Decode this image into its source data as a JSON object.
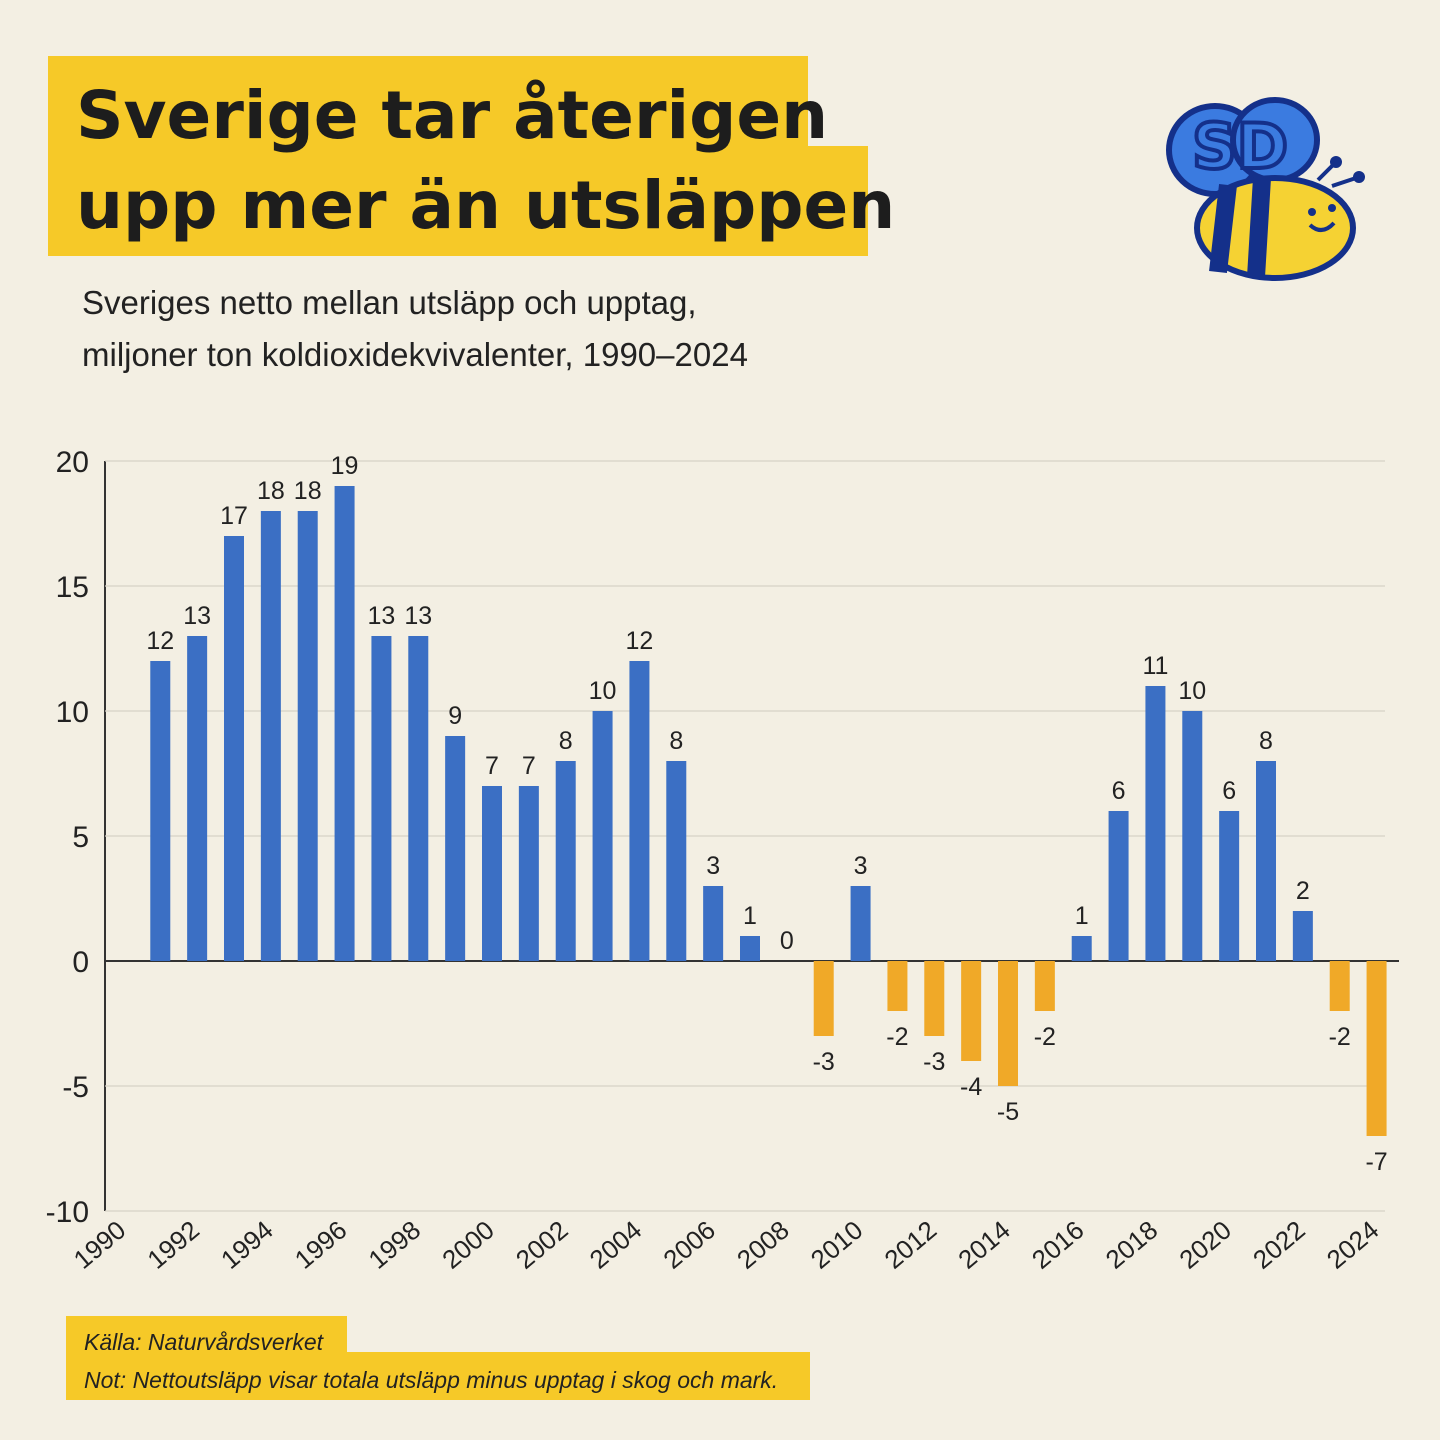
{
  "chart_data": {
    "type": "bar",
    "title_lines": [
      "Sverige tar återigen",
      "upp mer än utsläppen"
    ],
    "subtitle_lines": [
      "Sveriges netto mellan utsläpp och upptag,",
      "miljoner ton koldioxidekvivalenter, 1990–2024"
    ],
    "logo": "SD",
    "categories": [
      "1990",
      null,
      "1992",
      null,
      "1994",
      null,
      "1996",
      null,
      "1998",
      null,
      "2000",
      null,
      "2002",
      null,
      "2004",
      null,
      "2006",
      null,
      "2008",
      null,
      "2010",
      null,
      "2012",
      null,
      "2014",
      null,
      "2016",
      null,
      "2018",
      null,
      "2020",
      null,
      "2022",
      null,
      "2024"
    ],
    "values": [
      null,
      12,
      13,
      17,
      18,
      18,
      19,
      13,
      13,
      9,
      7,
      7,
      8,
      10,
      12,
      8,
      3,
      1,
      0,
      -3,
      3,
      -2,
      -3,
      -4,
      -5,
      -2,
      1,
      6,
      11,
      10,
      6,
      8,
      2,
      -2,
      -7
    ],
    "colors": {
      "positive": "#3b6fc4",
      "negative": "#f0a928"
    },
    "ylim": [
      -10,
      20
    ],
    "yticks": [
      -10,
      -5,
      0,
      5,
      10,
      15,
      20
    ],
    "grid": true,
    "source": "Källa: Naturvårdsverket",
    "note": "Not: Nettoutsläpp visar totala utsläpp minus upptag i skog och mark."
  }
}
